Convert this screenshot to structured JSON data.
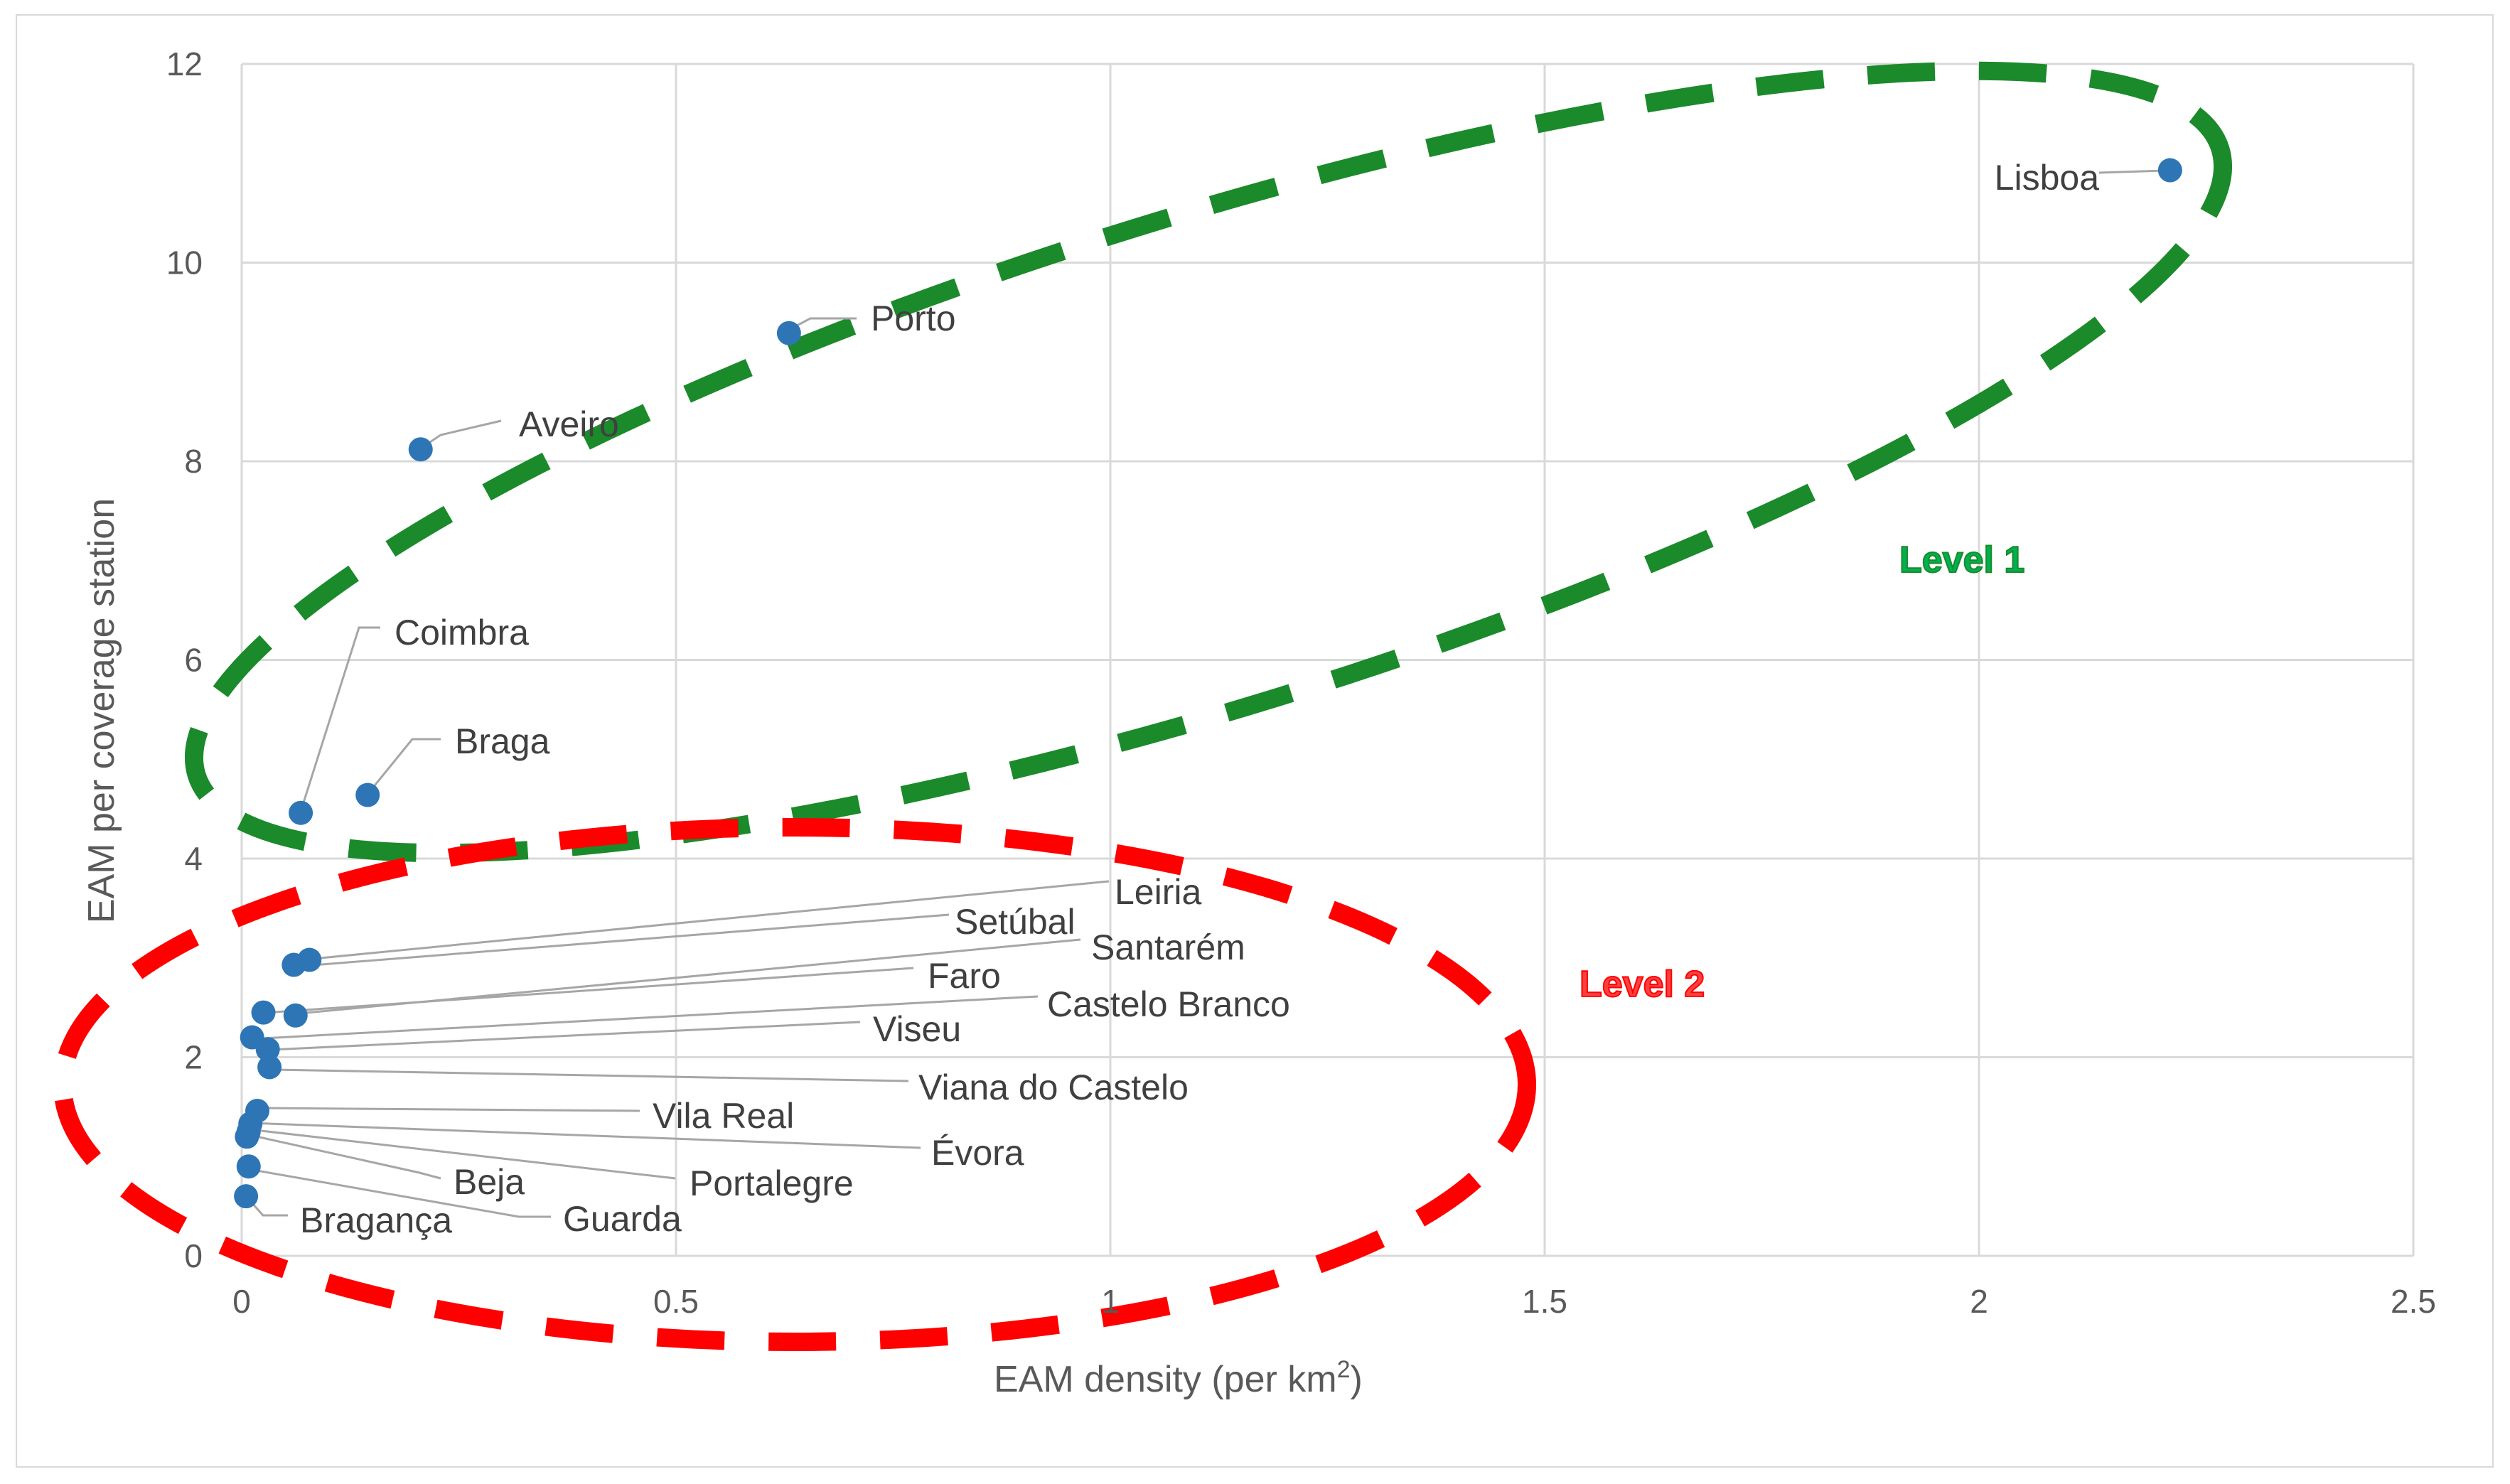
{
  "chart_data": {
    "type": "scatter",
    "title": "",
    "xlabel": "EAM density (per km",
    "xlabel_sup": "2",
    "xlabel_end": ")",
    "ylabel": "EAM per coverage station",
    "xlim": [
      0,
      2.5
    ],
    "ylim": [
      0,
      12
    ],
    "x_ticks": [
      0,
      0.5,
      1,
      1.5,
      2,
      2.5
    ],
    "y_ticks": [
      0,
      2,
      4,
      6,
      8,
      10,
      12
    ],
    "x_tick_labels": [
      "0",
      "0.5",
      "1",
      "1.5",
      "2",
      "2.5"
    ],
    "y_tick_labels": [
      "0",
      "2",
      "4",
      "6",
      "8",
      "10",
      "12"
    ],
    "grid": true,
    "point_color": "#2e75b6",
    "points": [
      {
        "label": "Lisboa",
        "x": 2.22,
        "y": 10.93
      },
      {
        "label": "Porto",
        "x": 0.63,
        "y": 9.29
      },
      {
        "label": "Aveiro",
        "x": 0.206,
        "y": 8.12
      },
      {
        "label": "Coimbra",
        "x": 0.068,
        "y": 4.46
      },
      {
        "label": "Braga",
        "x": 0.145,
        "y": 4.64
      },
      {
        "label": "Leiria",
        "x": 0.078,
        "y": 2.98
      },
      {
        "label": "Setúbal",
        "x": 0.06,
        "y": 2.93
      },
      {
        "label": "Santarém",
        "x": 0.062,
        "y": 2.42
      },
      {
        "label": "Faro",
        "x": 0.025,
        "y": 2.45
      },
      {
        "label": "Castelo Branco",
        "x": 0.012,
        "y": 2.2
      },
      {
        "label": "Viseu",
        "x": 0.03,
        "y": 2.08
      },
      {
        "label": "Viana do Castelo",
        "x": 0.032,
        "y": 1.9
      },
      {
        "label": "Vila Real",
        "x": 0.018,
        "y": 1.46
      },
      {
        "label": "Évora",
        "x": 0.01,
        "y": 1.33
      },
      {
        "label": "Portalegre",
        "x": 0.008,
        "y": 1.25
      },
      {
        "label": "Beja",
        "x": 0.006,
        "y": 1.2
      },
      {
        "label": "Guarda",
        "x": 0.008,
        "y": 0.9
      },
      {
        "label": "Bragança",
        "x": 0.005,
        "y": 0.6
      }
    ],
    "annotations": [
      {
        "text": "Level 1",
        "color": "#00b050",
        "outline_color": "#1a8a2a"
      },
      {
        "text": "Level 2",
        "color": "#ff0000",
        "outline_color": "#ff0000"
      }
    ]
  }
}
